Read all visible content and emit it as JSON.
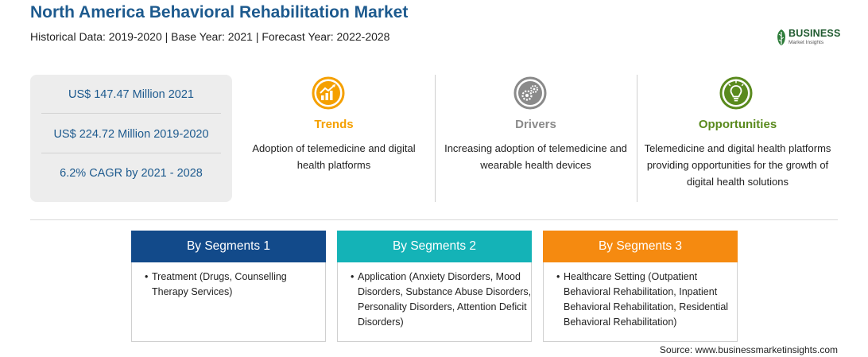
{
  "header": {
    "title": "North America Behavioral Rehabilitation Market",
    "subtitle": "Historical Data: 2019-2020 | Base Year: 2021 | Forecast Year: 2022-2028"
  },
  "logo": {
    "word": "BUSINESS",
    "sub": "Market Insights"
  },
  "stats": [
    "US$ 147.47 Million 2021",
    "US$ 224.72 Million 2019-2020",
    "6.2% CAGR by 2021 - 2028"
  ],
  "cards": [
    {
      "label": "Trends",
      "icon": "trend-chart-icon",
      "color": "#f5a000",
      "description": "Adoption of telemedicine and digital health platforms"
    },
    {
      "label": "Drivers",
      "icon": "gears-icon",
      "color": "#8a8a8a",
      "description": "Increasing adoption of telemedicine and wearable health devices"
    },
    {
      "label": "Opportunities",
      "icon": "lightbulb-icon",
      "color": "#5a8a1e",
      "description": "Telemedicine and digital health platforms providing opportunities for the growth of digital health solutions"
    }
  ],
  "segments": [
    {
      "title": "By Segments 1",
      "color": "#124a8a",
      "text": "Treatment (Drugs, Counselling Therapy Services)"
    },
    {
      "title": "By Segments 2",
      "color": "#14b3b7",
      "text": "Application (Anxiety Disorders, Mood Disorders, Substance Abuse Disorders, Personality Disorders, Attention Deficit Disorders)"
    },
    {
      "title": "By Segments 3",
      "color": "#f58a10",
      "text": "Healthcare Setting (Outpatient Behavioral Rehabilitation, Inpatient Behavioral Rehabilitation, Residential Behavioral Rehabilitation)"
    }
  ],
  "bullet": "•",
  "source": "Source: www.businessmarketinsights.com"
}
